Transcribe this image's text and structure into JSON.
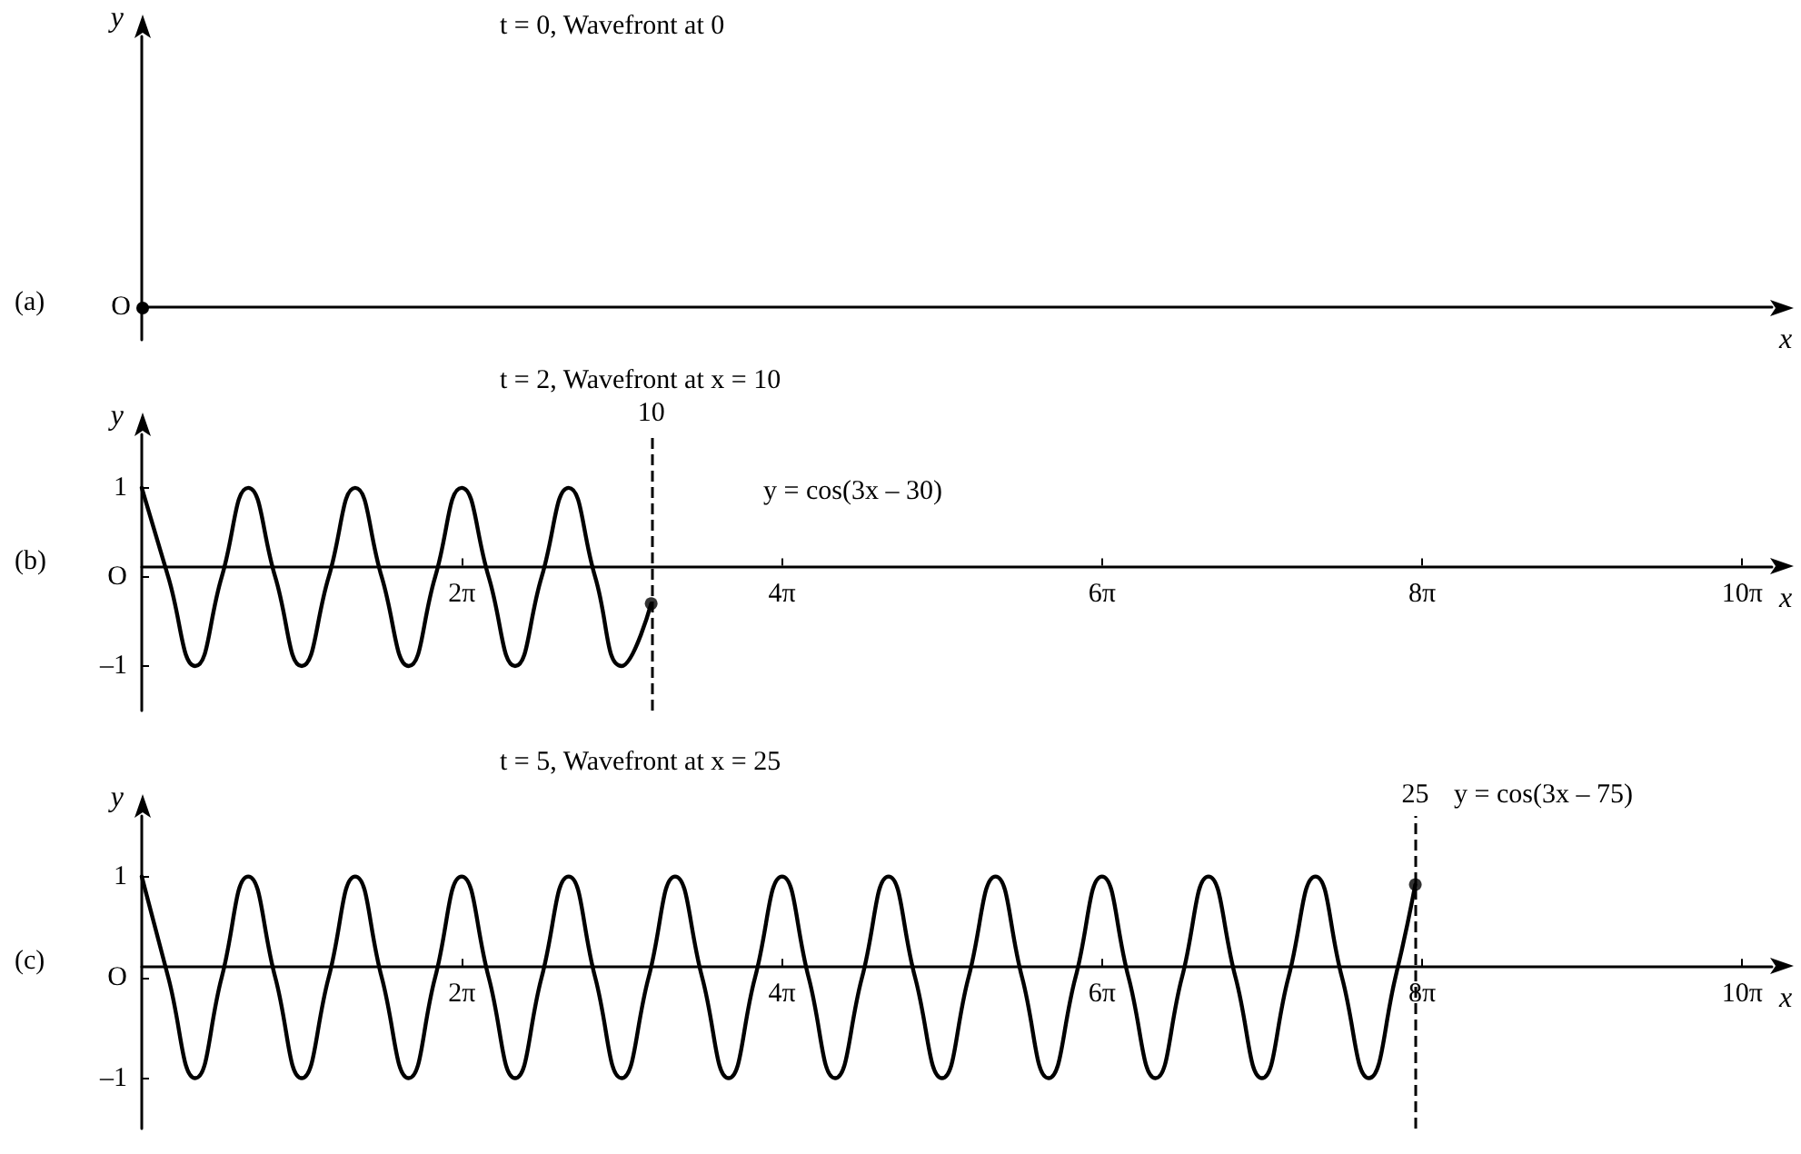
{
  "chart_data": [
    {
      "type": "other",
      "title": "t = 0, Wavefront at 0",
      "xlabel": "x",
      "ylabel": "y",
      "annotations": [
        "(a)",
        "O"
      ]
    },
    {
      "type": "line",
      "title": "t = 2, Wavefront at x = 10",
      "xlabel": "x",
      "ylabel": "y",
      "xlim": [
        0,
        32
      ],
      "ylim": [
        -1.5,
        1.6
      ],
      "xticks": [
        {
          "value": 6.283,
          "label": "2π"
        },
        {
          "value": 12.566,
          "label": "4π"
        },
        {
          "value": 18.85,
          "label": "6π"
        },
        {
          "value": 25.133,
          "label": "8π"
        },
        {
          "value": 31.416,
          "label": "10π"
        }
      ],
      "yticks": [
        {
          "value": -1,
          "label": "–1"
        },
        {
          "value": 0,
          "label": "O"
        },
        {
          "value": 1,
          "label": "1"
        }
      ],
      "ref_lines": [
        {
          "axis": "x",
          "value": 10,
          "label": "10",
          "line_style": "dashed",
          "color": "#000000"
        }
      ],
      "annotations": [
        "(b)",
        "y = cos(3x – 30)"
      ],
      "series": [
        {
          "type": "line",
          "marker": "none",
          "line_style": "solid",
          "color": "#000000",
          "x": [
            0,
            0.52,
            1.05,
            1.57,
            2.09,
            2.62,
            3.14,
            3.67,
            4.19,
            4.71,
            5.24,
            5.76,
            6.28,
            6.81,
            7.33,
            7.85,
            8.38,
            8.9,
            9.42,
            10
          ],
          "values": [
            1,
            0,
            -1,
            0,
            1,
            0,
            -1,
            0,
            1,
            0,
            -1,
            0,
            1,
            0,
            -1,
            0,
            1,
            0,
            -1,
            -0.3
          ]
        },
        {
          "type": "scatter",
          "marker": "circle",
          "color": "#000000",
          "x": [
            10
          ],
          "values": [
            -0.3
          ]
        }
      ]
    },
    {
      "type": "line",
      "title": "t = 5, Wavefront at x = 25",
      "xlabel": "x",
      "ylabel": "y",
      "xlim": [
        0,
        32
      ],
      "ylim": [
        -1.5,
        1.6
      ],
      "xticks": [
        {
          "value": 6.283,
          "label": "2π"
        },
        {
          "value": 12.566,
          "label": "4π"
        },
        {
          "value": 18.85,
          "label": "6π"
        },
        {
          "value": 25.133,
          "label": "8π"
        },
        {
          "value": 31.416,
          "label": "10π"
        }
      ],
      "yticks": [
        {
          "value": -1,
          "label": "–1"
        },
        {
          "value": 0,
          "label": "O"
        },
        {
          "value": 1,
          "label": "1"
        }
      ],
      "ref_lines": [
        {
          "axis": "x",
          "value": 25,
          "label": "25",
          "line_style": "dashed",
          "color": "#000000"
        }
      ],
      "annotations": [
        "(c)",
        "y = cos(3x – 75)"
      ],
      "series": [
        {
          "type": "line",
          "marker": "none",
          "line_style": "solid",
          "color": "#000000",
          "x": [
            0,
            0.52,
            1.05,
            1.57,
            2.09,
            2.62,
            3.14,
            3.67,
            4.19,
            4.71,
            5.24,
            5.76,
            6.28,
            6.81,
            7.33,
            7.85,
            8.38,
            8.9,
            9.42,
            9.95,
            10.47,
            11,
            11.52,
            12.04,
            12.57,
            13.09,
            13.61,
            14.14,
            14.66,
            15.18,
            15.71,
            16.23,
            16.76,
            17.28,
            17.8,
            18.33,
            18.85,
            19.37,
            19.9,
            20.42,
            20.94,
            21.47,
            21.99,
            22.51,
            23.04,
            23.56,
            24.09,
            24.61,
            25
          ],
          "values": [
            1,
            0,
            -1,
            0,
            1,
            0,
            -1,
            0,
            1,
            0,
            -1,
            0,
            1,
            0,
            -1,
            0,
            1,
            0,
            -1,
            0,
            1,
            0,
            -1,
            0,
            1,
            0,
            -1,
            0,
            1,
            0,
            -1,
            0,
            1,
            0,
            -1,
            0,
            1,
            0,
            -1,
            0,
            1,
            0,
            -1,
            0,
            1,
            0,
            -1,
            0,
            0.92
          ]
        },
        {
          "type": "scatter",
          "marker": "circle",
          "color": "#000000",
          "x": [
            25
          ],
          "values": [
            0.92
          ]
        }
      ]
    }
  ]
}
